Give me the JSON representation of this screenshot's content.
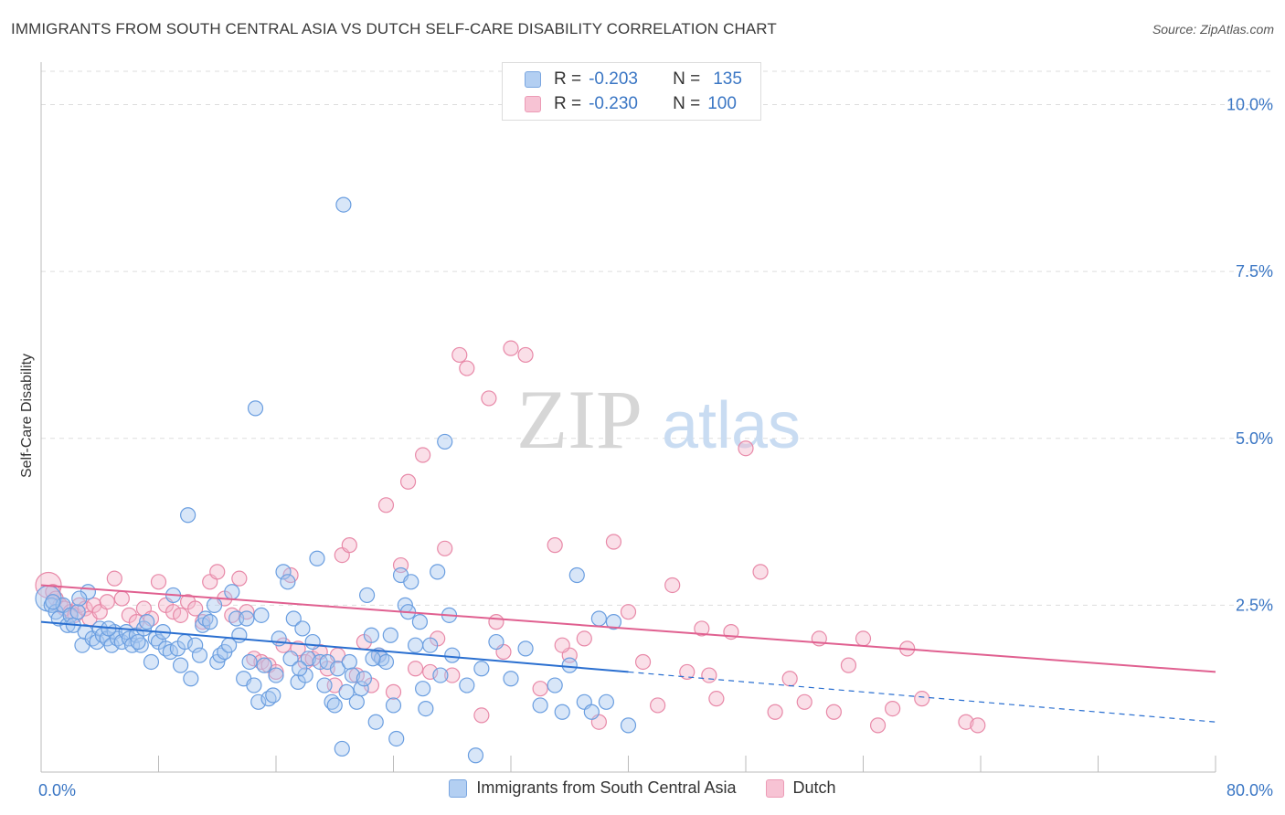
{
  "header": {
    "title": "IMMIGRANTS FROM SOUTH CENTRAL ASIA VS DUTCH SELF-CARE DISABILITY CORRELATION CHART",
    "source": "Source: ZipAtlas.com"
  },
  "watermark": {
    "part1": "ZIP",
    "part2": "atlas"
  },
  "legend": {
    "rows": [
      {
        "r_label": "R =",
        "r_value": "-0.203",
        "n_label": "N =",
        "n_value": "135"
      },
      {
        "r_label": "R =",
        "r_value": "-0.230",
        "n_label": "N =",
        "n_value": "100"
      }
    ]
  },
  "bottom_legend": {
    "items": [
      {
        "label": "Immigrants from South Central Asia"
      },
      {
        "label": "Dutch"
      }
    ]
  },
  "colors": {
    "blue_fill": "#a9c8f0",
    "blue_stroke": "#6a9ee0",
    "blue_line": "#2a6fd0",
    "pink_fill": "#f4b8cc",
    "pink_stroke": "#e889a8",
    "pink_line": "#e06090",
    "tick_text": "#3a76c4",
    "grid": "#dddddd"
  },
  "chart_data": {
    "type": "scatter",
    "ylabel": "Self-Care Disability",
    "xlim": [
      0,
      80
    ],
    "ylim": [
      0,
      10.5
    ],
    "x_tick_labels": [
      "0.0%",
      "80.0%"
    ],
    "y_ticks": [
      2.5,
      5.0,
      7.5,
      10.0
    ],
    "y_tick_labels": [
      "2.5%",
      "5.0%",
      "7.5%",
      "10.0%"
    ],
    "grid": true,
    "series": [
      {
        "name": "Immigrants from South Central Asia",
        "color": "#6a9ee0",
        "trend": {
          "x0": 0,
          "y0": 2.25,
          "x1": 40,
          "y1": 1.5,
          "dash_to_x": 80,
          "dash_to_y": 0.75
        },
        "points": [
          [
            0.5,
            2.6
          ],
          [
            0.7,
            2.5
          ],
          [
            1,
            2.4
          ],
          [
            1.2,
            2.3
          ],
          [
            1.5,
            2.5
          ],
          [
            1.8,
            2.2
          ],
          [
            2,
            2.35
          ],
          [
            2.2,
            2.2
          ],
          [
            2.5,
            2.4
          ],
          [
            2.8,
            1.9
          ],
          [
            3,
            2.1
          ],
          [
            3.2,
            2.7
          ],
          [
            3.5,
            2.0
          ],
          [
            3.8,
            1.95
          ],
          [
            4,
            2.15
          ],
          [
            4.2,
            2.05
          ],
          [
            4.5,
            2.0
          ],
          [
            4.8,
            1.9
          ],
          [
            5,
            2.1
          ],
          [
            5.2,
            2.0
          ],
          [
            5.5,
            1.95
          ],
          [
            5.8,
            2.1
          ],
          [
            6,
            2.0
          ],
          [
            6.2,
            1.9
          ],
          [
            6.5,
            2.05
          ],
          [
            6.8,
            1.9
          ],
          [
            7,
            2.15
          ],
          [
            7.2,
            2.25
          ],
          [
            7.5,
            1.65
          ],
          [
            7.8,
            2.0
          ],
          [
            8,
            1.95
          ],
          [
            8.3,
            2.1
          ],
          [
            8.5,
            1.85
          ],
          [
            8.8,
            1.8
          ],
          [
            9,
            2.65
          ],
          [
            9.3,
            1.85
          ],
          [
            9.5,
            1.6
          ],
          [
            9.8,
            1.95
          ],
          [
            10,
            3.85
          ],
          [
            10.2,
            1.4
          ],
          [
            10.5,
            1.9
          ],
          [
            10.8,
            1.75
          ],
          [
            11,
            2.2
          ],
          [
            11.2,
            2.3
          ],
          [
            11.5,
            2.25
          ],
          [
            11.8,
            2.5
          ],
          [
            12,
            1.65
          ],
          [
            12.2,
            1.75
          ],
          [
            12.5,
            1.8
          ],
          [
            12.8,
            1.9
          ],
          [
            13,
            2.7
          ],
          [
            13.3,
            2.3
          ],
          [
            13.5,
            2.05
          ],
          [
            13.8,
            1.4
          ],
          [
            14,
            2.3
          ],
          [
            14.2,
            1.65
          ],
          [
            14.5,
            1.3
          ],
          [
            14.8,
            1.05
          ],
          [
            15,
            2.35
          ],
          [
            15.2,
            1.6
          ],
          [
            15.5,
            1.1
          ],
          [
            15.8,
            1.15
          ],
          [
            16,
            1.45
          ],
          [
            16.2,
            2.0
          ],
          [
            16.5,
            3.0
          ],
          [
            16.8,
            2.85
          ],
          [
            17,
            1.7
          ],
          [
            17.2,
            2.3
          ],
          [
            17.5,
            1.35
          ],
          [
            17.8,
            2.15
          ],
          [
            18,
            1.45
          ],
          [
            18.2,
            1.7
          ],
          [
            18.5,
            1.95
          ],
          [
            18.8,
            3.2
          ],
          [
            19,
            1.65
          ],
          [
            19.3,
            1.3
          ],
          [
            19.5,
            1.65
          ],
          [
            19.8,
            1.05
          ],
          [
            20,
            1.0
          ],
          [
            20.2,
            1.55
          ],
          [
            20.5,
            0.35
          ],
          [
            20.8,
            1.2
          ],
          [
            21,
            1.65
          ],
          [
            21.2,
            1.45
          ],
          [
            21.5,
            1.05
          ],
          [
            21.8,
            1.25
          ],
          [
            22,
            1.4
          ],
          [
            22.2,
            2.65
          ],
          [
            22.5,
            2.05
          ],
          [
            22.8,
            0.75
          ],
          [
            23,
            1.75
          ],
          [
            23.2,
            1.7
          ],
          [
            23.5,
            1.65
          ],
          [
            23.8,
            2.05
          ],
          [
            24,
            1.0
          ],
          [
            24.2,
            0.5
          ],
          [
            24.5,
            2.95
          ],
          [
            24.8,
            2.5
          ],
          [
            25,
            2.4
          ],
          [
            25.2,
            2.85
          ],
          [
            25.5,
            1.9
          ],
          [
            25.8,
            2.25
          ],
          [
            26,
            1.25
          ],
          [
            26.2,
            0.95
          ],
          [
            26.5,
            1.9
          ],
          [
            27,
            3.0
          ],
          [
            27.2,
            1.45
          ],
          [
            27.5,
            4.95
          ],
          [
            27.8,
            2.35
          ],
          [
            28,
            1.75
          ],
          [
            29,
            1.3
          ],
          [
            30,
            1.55
          ],
          [
            31,
            1.95
          ],
          [
            32,
            1.4
          ],
          [
            33,
            1.85
          ],
          [
            34,
            1.0
          ],
          [
            35,
            1.3
          ],
          [
            35.5,
            0.9
          ],
          [
            36,
            1.6
          ],
          [
            36.5,
            2.95
          ],
          [
            37,
            1.05
          ],
          [
            37.5,
            0.9
          ],
          [
            38,
            2.3
          ],
          [
            38.5,
            1.05
          ],
          [
            39,
            2.25
          ],
          [
            40,
            0.7
          ],
          [
            0.8,
            2.55
          ],
          [
            2.6,
            2.6
          ],
          [
            4.6,
            2.15
          ],
          [
            6.6,
            1.95
          ],
          [
            20.6,
            8.5
          ],
          [
            14.6,
            5.45
          ],
          [
            29.6,
            0.25
          ],
          [
            22.6,
            1.7
          ],
          [
            17.6,
            1.55
          ]
        ]
      },
      {
        "name": "Dutch",
        "color": "#e889a8",
        "trend": {
          "x0": 0,
          "y0": 2.8,
          "x1": 80,
          "y1": 1.5
        },
        "points": [
          [
            0.5,
            2.8
          ],
          [
            0.8,
            2.7
          ],
          [
            1,
            2.6
          ],
          [
            1.3,
            2.5
          ],
          [
            1.6,
            2.45
          ],
          [
            2,
            2.4
          ],
          [
            2.3,
            2.35
          ],
          [
            2.6,
            2.5
          ],
          [
            3,
            2.45
          ],
          [
            3.3,
            2.3
          ],
          [
            3.6,
            2.5
          ],
          [
            4,
            2.4
          ],
          [
            4.5,
            2.55
          ],
          [
            5,
            2.9
          ],
          [
            5.5,
            2.6
          ],
          [
            6,
            2.35
          ],
          [
            6.5,
            2.25
          ],
          [
            7,
            2.45
          ],
          [
            7.5,
            2.3
          ],
          [
            8,
            2.85
          ],
          [
            8.5,
            2.5
          ],
          [
            9,
            2.4
          ],
          [
            9.5,
            2.35
          ],
          [
            10,
            2.55
          ],
          [
            10.5,
            2.45
          ],
          [
            11,
            2.25
          ],
          [
            11.5,
            2.85
          ],
          [
            12,
            3.0
          ],
          [
            12.5,
            2.6
          ],
          [
            13,
            2.35
          ],
          [
            13.5,
            2.9
          ],
          [
            14,
            2.4
          ],
          [
            14.5,
            1.7
          ],
          [
            15,
            1.65
          ],
          [
            15.5,
            1.6
          ],
          [
            16,
            1.5
          ],
          [
            16.5,
            1.9
          ],
          [
            17,
            2.95
          ],
          [
            17.5,
            1.85
          ],
          [
            18,
            1.65
          ],
          [
            18.5,
            1.7
          ],
          [
            19,
            1.8
          ],
          [
            19.5,
            1.55
          ],
          [
            20,
            1.3
          ],
          [
            20.5,
            3.25
          ],
          [
            21,
            3.4
          ],
          [
            21.5,
            1.45
          ],
          [
            22,
            1.95
          ],
          [
            22.5,
            1.3
          ],
          [
            23,
            1.75
          ],
          [
            23.5,
            4.0
          ],
          [
            24,
            1.2
          ],
          [
            24.5,
            3.1
          ],
          [
            25,
            4.35
          ],
          [
            25.5,
            1.55
          ],
          [
            26,
            4.75
          ],
          [
            26.5,
            1.5
          ],
          [
            27,
            2.0
          ],
          [
            27.5,
            3.35
          ],
          [
            28,
            1.45
          ],
          [
            28.5,
            6.25
          ],
          [
            29,
            6.05
          ],
          [
            30,
            0.85
          ],
          [
            30.5,
            5.6
          ],
          [
            31,
            2.25
          ],
          [
            32,
            6.35
          ],
          [
            33,
            6.25
          ],
          [
            34,
            1.25
          ],
          [
            35,
            3.4
          ],
          [
            36,
            1.75
          ],
          [
            37,
            2.0
          ],
          [
            38,
            0.75
          ],
          [
            39,
            3.45
          ],
          [
            40,
            2.4
          ],
          [
            41,
            1.65
          ],
          [
            42,
            1.0
          ],
          [
            43,
            2.8
          ],
          [
            44,
            1.5
          ],
          [
            45,
            2.15
          ],
          [
            46,
            1.1
          ],
          [
            47,
            2.1
          ],
          [
            48,
            4.85
          ],
          [
            49,
            3.0
          ],
          [
            50,
            0.9
          ],
          [
            51,
            1.4
          ],
          [
            52,
            1.05
          ],
          [
            53,
            2.0
          ],
          [
            54,
            0.9
          ],
          [
            55,
            1.6
          ],
          [
            56,
            2.0
          ],
          [
            57,
            0.7
          ],
          [
            58,
            0.95
          ],
          [
            59,
            1.85
          ],
          [
            60,
            1.1
          ],
          [
            63,
            0.75
          ],
          [
            63.8,
            0.7
          ],
          [
            20.2,
            1.75
          ],
          [
            31.5,
            1.8
          ],
          [
            35.5,
            1.9
          ],
          [
            45.5,
            1.45
          ]
        ]
      }
    ]
  }
}
